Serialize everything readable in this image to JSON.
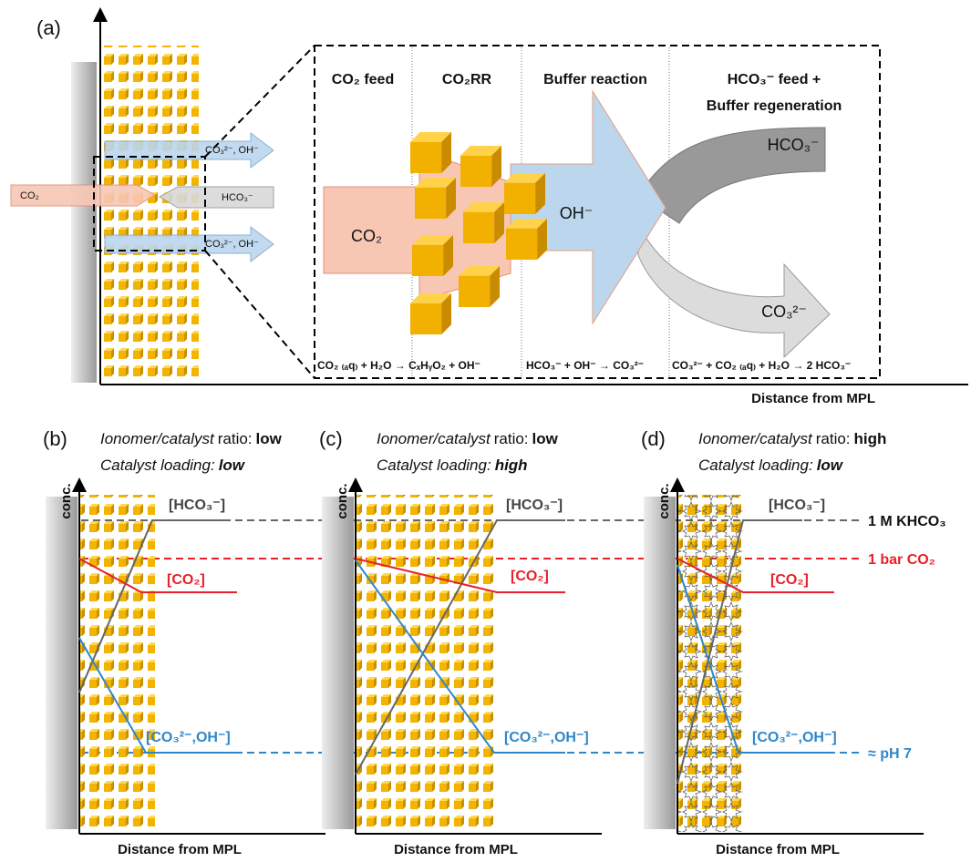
{
  "panel_a": {
    "label": "(a)",
    "x_axis_label": "Distance from MPL",
    "overview_arrows": {
      "top": "CO₃²⁻, OH⁻",
      "co2": "CO₂",
      "hco3": "HCO₃⁻",
      "bottom": "CO₃²⁻, OH⁻"
    },
    "zones": [
      {
        "header": [
          "CO₂ feed"
        ]
      },
      {
        "header": [
          "CO₂RR"
        ]
      },
      {
        "header": [
          "Buffer reaction"
        ]
      },
      {
        "header": [
          "HCO₃⁻ feed +",
          "Buffer regeneration"
        ]
      }
    ],
    "zoom_arrows": {
      "co2": "CO₂",
      "oh": "OH⁻",
      "hco3": "HCO₃⁻",
      "co3": "CO₃²⁻"
    },
    "equations": [
      "CO₂ ₍ₐq₎ + H₂O → CₓHᵧO₂ + OH⁻",
      "HCO₃⁻ + OH⁻ → CO₃²⁻",
      "CO₃²⁻ + CO₂ ₍ₐq₎ + H₂O → 2 HCO₃⁻"
    ]
  },
  "panels": [
    {
      "label": "(b)",
      "y_axis_label": "conc.",
      "x_axis_label": "Distance from MPL",
      "ratio": [
        "Ionomer/catalyst",
        "ratio:",
        "low"
      ],
      "loading": [
        "Catalyst loading:",
        "low"
      ],
      "curves": {
        "hco3": "[HCO₃⁻]",
        "co2": "[CO₂]",
        "co3_oh": "[CO₃²⁻,OH⁻]"
      }
    },
    {
      "label": "(c)",
      "y_axis_label": "conc.",
      "x_axis_label": "Distance from MPL",
      "ratio": [
        "Ionomer/catalyst",
        "ratio:",
        "low"
      ],
      "loading": [
        "Catalyst loading:",
        "high"
      ],
      "curves": {
        "hco3": "[HCO₃⁻]",
        "co2": "[CO₂]",
        "co3_oh": "[CO₃²⁻,OH⁻]"
      }
    },
    {
      "label": "(d)",
      "y_axis_label": "conc.",
      "x_axis_label": "Distance from MPL",
      "ratio": [
        "Ionomer/catalyst",
        "ratio:",
        "high"
      ],
      "loading": [
        "Catalyst loading:",
        "low"
      ],
      "curves": {
        "hco3": "[HCO₃⁻]",
        "co2": "[CO₂]",
        "co3_oh": "[CO₃²⁻,OH⁻]"
      }
    }
  ],
  "reference_lines": {
    "hco3": "1 M KHCO₃",
    "co2": "1 bar CO₂",
    "ph": "≈ pH 7"
  }
}
